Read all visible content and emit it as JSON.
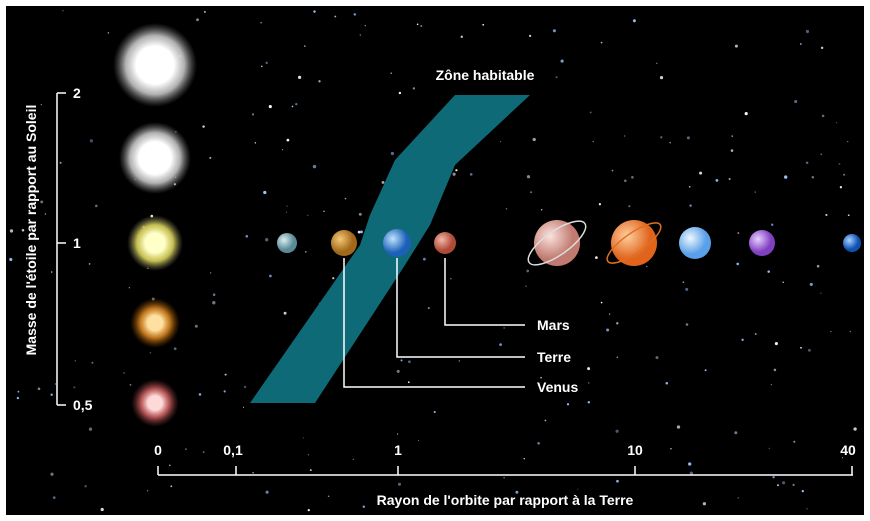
{
  "title": "Zône habitable",
  "y_axis": {
    "label": "Masse de l'étoile par rapport au Soleil",
    "ticks": [
      "2",
      "1",
      "0,5"
    ]
  },
  "x_axis": {
    "label": "Rayon de l'orbite par rapport à la Terre",
    "ticks": [
      "0",
      "0,1",
      "1",
      "10",
      "40"
    ]
  },
  "planet_labels": [
    "Mars",
    "Terre",
    "Venus"
  ]
}
